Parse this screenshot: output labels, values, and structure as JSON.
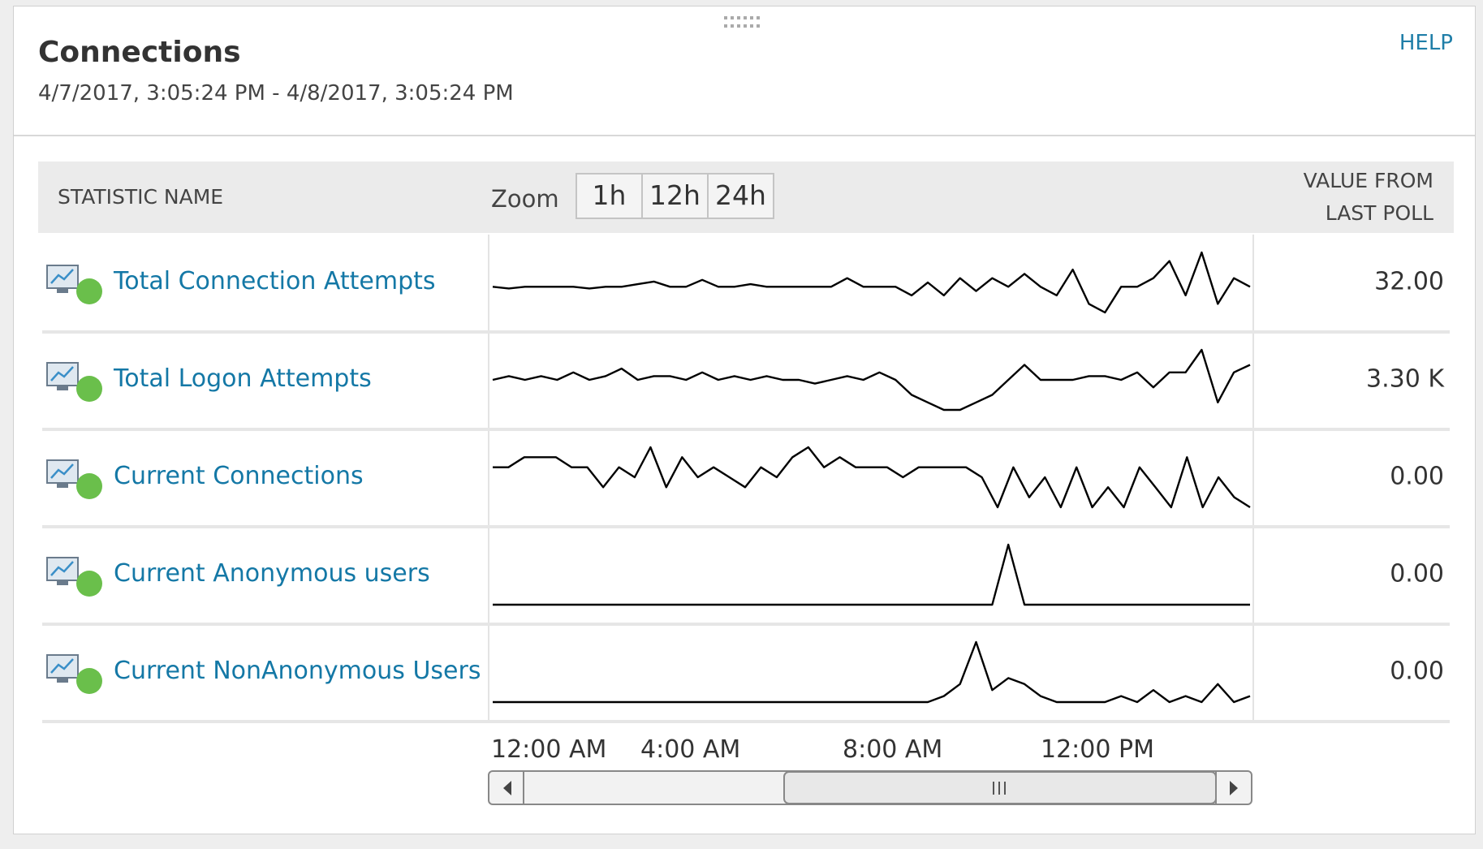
{
  "header": {
    "title": "Connections",
    "date_range": "4/7/2017, 3:05:24 PM - 4/8/2017, 3:05:24 PM",
    "help": "HELP"
  },
  "table": {
    "columns": {
      "name": "STATISTIC NAME",
      "zoom_label": "Zoom",
      "value": [
        "VALUE FROM",
        "LAST POLL"
      ]
    },
    "zoom_options": [
      "1h",
      "12h",
      "24h"
    ],
    "rows": [
      {
        "name": "Total Connection Attempts",
        "value": "32.00",
        "sparkline": [
          4,
          3.8,
          4,
          4,
          4,
          4,
          3.8,
          4,
          4,
          4.3,
          4.6,
          4,
          4,
          4.8,
          4,
          4,
          4.3,
          4,
          4,
          4,
          4,
          4,
          5,
          4,
          4,
          4,
          3,
          4.5,
          3,
          5,
          3.5,
          5,
          4,
          5.5,
          4,
          3,
          6,
          2,
          1,
          4,
          4,
          5,
          7,
          3,
          8,
          2,
          5,
          4
        ]
      },
      {
        "name": "Total Logon Attempts",
        "value": "3.30 K",
        "sparkline": [
          4,
          4.5,
          4,
          4.5,
          4,
          5,
          4,
          4.5,
          5.5,
          4,
          4.5,
          4.5,
          4,
          5,
          4,
          4.5,
          4,
          4.5,
          4,
          4,
          3.5,
          4,
          4.5,
          4,
          5,
          4,
          2,
          1,
          0,
          0,
          1,
          2,
          4,
          6,
          4,
          4,
          4,
          4.5,
          4.5,
          4,
          5,
          3,
          5,
          5,
          8,
          1,
          5,
          6
        ]
      },
      {
        "name": "Current Connections",
        "value": "0.00",
        "sparkline": [
          5,
          5,
          6,
          6,
          6,
          5,
          5,
          3,
          5,
          4,
          7,
          3,
          6,
          4,
          5,
          4,
          3,
          5,
          4,
          6,
          7,
          5,
          6,
          5,
          5,
          5,
          4,
          5,
          5,
          5,
          5,
          4,
          1,
          5,
          2,
          4,
          1,
          5,
          1,
          3,
          1,
          5,
          3,
          1,
          6,
          1,
          4,
          2,
          1
        ]
      },
      {
        "name": "Current Anonymous users",
        "value": "0.00",
        "sparkline": [
          0,
          0,
          0,
          0,
          0,
          0,
          0,
          0,
          0,
          0,
          0,
          0,
          0,
          0,
          0,
          0,
          0,
          0,
          0,
          0,
          0,
          0,
          0,
          0,
          0,
          0,
          0,
          0,
          0,
          0,
          0,
          0,
          10,
          0,
          0,
          0,
          0,
          0,
          0,
          0,
          0,
          0,
          0,
          0,
          0,
          0,
          0,
          0
        ]
      },
      {
        "name": "Current NonAnonymous Users",
        "value": "0.00",
        "sparkline": [
          0,
          0,
          0,
          0,
          0,
          0,
          0,
          0,
          0,
          0,
          0,
          0,
          0,
          0,
          0,
          0,
          0,
          0,
          0,
          0,
          0,
          0,
          0,
          0,
          0,
          0,
          0,
          0,
          1,
          3,
          10,
          2,
          4,
          3,
          1,
          0,
          0,
          0,
          0,
          1,
          0,
          2,
          0,
          1,
          0,
          3,
          0,
          1
        ]
      }
    ],
    "time_axis": [
      "12:00 AM",
      "4:00 AM",
      "8:00 AM",
      "12:00 PM"
    ]
  }
}
